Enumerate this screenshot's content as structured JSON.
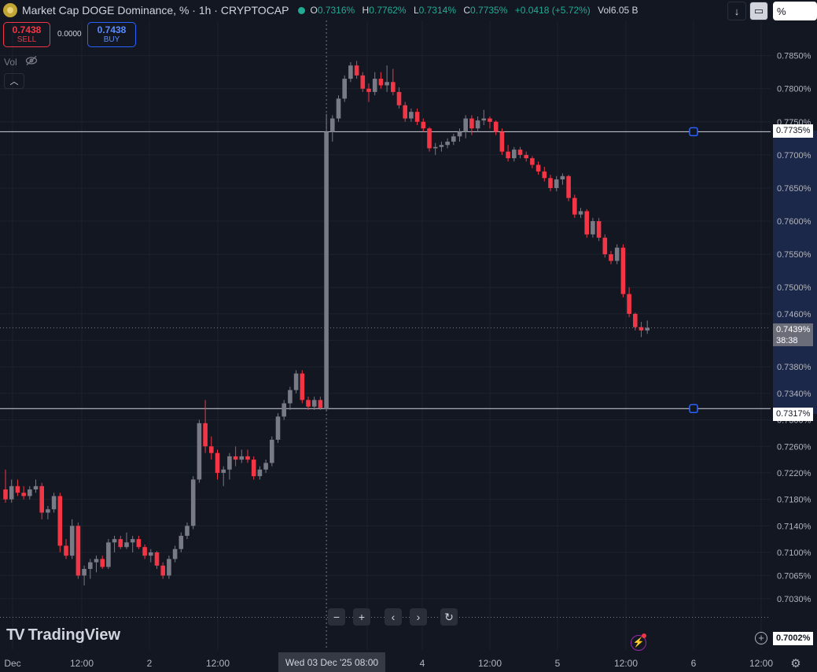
{
  "header": {
    "title": "Market Cap DOGE Dominance, % · 1h · CRYPTOCAP",
    "ohlc": [
      {
        "key": "O",
        "value": "0.7316%"
      },
      {
        "key": "H",
        "value": "0.7762%"
      },
      {
        "key": "L",
        "value": "0.7314%"
      },
      {
        "key": "C",
        "value": "0.7735%"
      }
    ],
    "change": "+0.0418 (+5.72%)",
    "vol_label": "Vol",
    "vol_value": "6.05 B",
    "percent_label": "%"
  },
  "trade": {
    "sell_price": "0.7438",
    "sell_label": "SELL",
    "spread": "0.0000",
    "buy_price": "0.7438",
    "buy_label": "BUY"
  },
  "volume_pane": {
    "label": "Vol"
  },
  "price_tags": {
    "upper_line": "0.7735%",
    "current": "0.7439%",
    "countdown": "38:38",
    "lower_line": "0.7317%",
    "bottom": "0.7002%"
  },
  "x_crosshair_label": "Wed 03 Dec '25   08:00",
  "branding": "TradingView",
  "colors": {
    "up": "#787b86",
    "down": "#f23645",
    "bg": "#131722",
    "accent": "#2962ff"
  },
  "chart_data": {
    "type": "candlestick",
    "y_unit": "%",
    "ylim": [
      0.7002,
      0.7905
    ],
    "y_ticks": [
      0.785,
      0.78,
      0.775,
      0.77,
      0.765,
      0.76,
      0.755,
      0.75,
      0.746,
      0.742,
      0.738,
      0.734,
      0.73,
      0.726,
      0.722,
      0.718,
      0.714,
      0.71,
      0.7065,
      0.703
    ],
    "y_tick_labels": [
      "0.7850%",
      "0.7800%",
      "0.7750%",
      "0.7700%",
      "0.7650%",
      "0.7600%",
      "0.7550%",
      "0.7500%",
      "0.7460%",
      "0.7420%",
      "0.7380%",
      "0.7340%",
      "0.7300%",
      "0.7260%",
      "0.7220%",
      "0.7180%",
      "0.7140%",
      "0.7100%",
      "0.7065%",
      "0.7030%"
    ],
    "x_tick_labels": [
      "Dec",
      "12:00",
      "2",
      "12:00",
      "08:00",
      "4",
      "12:00",
      "5",
      "12:00",
      "6",
      "12:00"
    ],
    "horizontal_lines": [
      0.7735,
      0.7317
    ],
    "current_price": 0.7439,
    "candles": [
      [
        0.7195,
        0.7225,
        0.7175,
        0.718
      ],
      [
        0.718,
        0.721,
        0.7175,
        0.72
      ],
      [
        0.72,
        0.721,
        0.7185,
        0.719
      ],
      [
        0.719,
        0.72,
        0.718,
        0.7185
      ],
      [
        0.7185,
        0.72,
        0.718,
        0.7195
      ],
      [
        0.7195,
        0.721,
        0.719,
        0.72
      ],
      [
        0.72,
        0.7205,
        0.715,
        0.716
      ],
      [
        0.716,
        0.717,
        0.715,
        0.7165
      ],
      [
        0.7165,
        0.719,
        0.716,
        0.7185
      ],
      [
        0.7185,
        0.719,
        0.71,
        0.711
      ],
      [
        0.711,
        0.712,
        0.709,
        0.7095
      ],
      [
        0.7095,
        0.715,
        0.709,
        0.714
      ],
      [
        0.714,
        0.7145,
        0.706,
        0.7065
      ],
      [
        0.7065,
        0.708,
        0.705,
        0.7075
      ],
      [
        0.7075,
        0.709,
        0.706,
        0.7085
      ],
      [
        0.7085,
        0.7095,
        0.707,
        0.709
      ],
      [
        0.709,
        0.7095,
        0.7075,
        0.7078
      ],
      [
        0.7078,
        0.712,
        0.7075,
        0.7115
      ],
      [
        0.7115,
        0.7125,
        0.71,
        0.712
      ],
      [
        0.712,
        0.7125,
        0.7105,
        0.7108
      ],
      [
        0.7108,
        0.713,
        0.7105,
        0.7115
      ],
      [
        0.7115,
        0.7125,
        0.71,
        0.712
      ],
      [
        0.712,
        0.7125,
        0.7105,
        0.7108
      ],
      [
        0.7108,
        0.7112,
        0.709,
        0.7095
      ],
      [
        0.7095,
        0.7105,
        0.7085,
        0.71
      ],
      [
        0.71,
        0.7102,
        0.7075,
        0.708
      ],
      [
        0.708,
        0.7085,
        0.706,
        0.7065
      ],
      [
        0.7065,
        0.7095,
        0.706,
        0.709
      ],
      [
        0.709,
        0.711,
        0.7085,
        0.7105
      ],
      [
        0.7105,
        0.713,
        0.71,
        0.7125
      ],
      [
        0.7125,
        0.7145,
        0.712,
        0.714
      ],
      [
        0.714,
        0.7215,
        0.7135,
        0.721
      ],
      [
        0.721,
        0.73,
        0.7205,
        0.7295
      ],
      [
        0.7295,
        0.733,
        0.725,
        0.726
      ],
      [
        0.726,
        0.7275,
        0.724,
        0.725
      ],
      [
        0.725,
        0.7255,
        0.721,
        0.722
      ],
      [
        0.722,
        0.723,
        0.72,
        0.7225
      ],
      [
        0.7225,
        0.725,
        0.721,
        0.7245
      ],
      [
        0.7245,
        0.726,
        0.723,
        0.724
      ],
      [
        0.724,
        0.7255,
        0.7235,
        0.7245
      ],
      [
        0.7245,
        0.7255,
        0.7235,
        0.724
      ],
      [
        0.724,
        0.7245,
        0.721,
        0.7215
      ],
      [
        0.7215,
        0.723,
        0.721,
        0.7225
      ],
      [
        0.7225,
        0.724,
        0.722,
        0.7235
      ],
      [
        0.7235,
        0.7275,
        0.723,
        0.727
      ],
      [
        0.727,
        0.731,
        0.7265,
        0.7305
      ],
      [
        0.7305,
        0.733,
        0.73,
        0.7325
      ],
      [
        0.7325,
        0.735,
        0.7315,
        0.7345
      ],
      [
        0.7345,
        0.7375,
        0.734,
        0.737
      ],
      [
        0.737,
        0.7375,
        0.7325,
        0.733
      ],
      [
        0.733,
        0.7335,
        0.7315,
        0.732
      ],
      [
        0.732,
        0.7335,
        0.7315,
        0.733
      ],
      [
        0.733,
        0.7335,
        0.7315,
        0.7318
      ],
      [
        0.7316,
        0.7762,
        0.7314,
        0.7735
      ],
      [
        0.7735,
        0.776,
        0.772,
        0.7755
      ],
      [
        0.7755,
        0.779,
        0.775,
        0.7785
      ],
      [
        0.7785,
        0.782,
        0.778,
        0.7815
      ],
      [
        0.7815,
        0.784,
        0.781,
        0.7835
      ],
      [
        0.7835,
        0.7842,
        0.7815,
        0.782
      ],
      [
        0.782,
        0.7825,
        0.7795,
        0.78
      ],
      [
        0.78,
        0.7808,
        0.778,
        0.7795
      ],
      [
        0.7795,
        0.7825,
        0.779,
        0.7815
      ],
      [
        0.7815,
        0.7825,
        0.78,
        0.7805
      ],
      [
        0.7805,
        0.7835,
        0.7795,
        0.781
      ],
      [
        0.781,
        0.783,
        0.779,
        0.7795
      ],
      [
        0.7795,
        0.7802,
        0.777,
        0.7775
      ],
      [
        0.7775,
        0.778,
        0.775,
        0.7755
      ],
      [
        0.7755,
        0.777,
        0.775,
        0.7765
      ],
      [
        0.7765,
        0.777,
        0.7745,
        0.775
      ],
      [
        0.775,
        0.7755,
        0.7735,
        0.774
      ],
      [
        0.774,
        0.7742,
        0.7705,
        0.771
      ],
      [
        0.771,
        0.7718,
        0.77,
        0.7712
      ],
      [
        0.7712,
        0.772,
        0.7705,
        0.7715
      ],
      [
        0.7715,
        0.7725,
        0.771,
        0.772
      ],
      [
        0.772,
        0.7732,
        0.7715,
        0.7728
      ],
      [
        0.7728,
        0.774,
        0.772,
        0.7735
      ],
      [
        0.7735,
        0.776,
        0.7725,
        0.7755
      ],
      [
        0.7755,
        0.776,
        0.773,
        0.774
      ],
      [
        0.774,
        0.7758,
        0.7735,
        0.7752
      ],
      [
        0.7752,
        0.7768,
        0.7745,
        0.7755
      ],
      [
        0.7755,
        0.7758,
        0.774,
        0.775
      ],
      [
        0.775,
        0.7752,
        0.773,
        0.7735
      ],
      [
        0.7735,
        0.774,
        0.77,
        0.7705
      ],
      [
        0.7705,
        0.7715,
        0.769,
        0.7695
      ],
      [
        0.7695,
        0.7712,
        0.769,
        0.7708
      ],
      [
        0.7708,
        0.7712,
        0.7695,
        0.77
      ],
      [
        0.77,
        0.7705,
        0.769,
        0.7695
      ],
      [
        0.7695,
        0.7698,
        0.768,
        0.7685
      ],
      [
        0.7685,
        0.769,
        0.767,
        0.7675
      ],
      [
        0.7675,
        0.7682,
        0.766,
        0.7665
      ],
      [
        0.7665,
        0.767,
        0.7645,
        0.765
      ],
      [
        0.765,
        0.7668,
        0.7645,
        0.7663
      ],
      [
        0.7663,
        0.7672,
        0.7655,
        0.7668
      ],
      [
        0.7668,
        0.767,
        0.763,
        0.7635
      ],
      [
        0.7635,
        0.764,
        0.7605,
        0.761
      ],
      [
        0.761,
        0.762,
        0.7605,
        0.7615
      ],
      [
        0.7615,
        0.7618,
        0.7575,
        0.758
      ],
      [
        0.758,
        0.7605,
        0.7575,
        0.76
      ],
      [
        0.76,
        0.7605,
        0.757,
        0.7575
      ],
      [
        0.7575,
        0.758,
        0.7545,
        0.755
      ],
      [
        0.755,
        0.7555,
        0.7535,
        0.754
      ],
      [
        0.754,
        0.7565,
        0.7535,
        0.756
      ],
      [
        0.756,
        0.7565,
        0.7485,
        0.749
      ],
      [
        0.749,
        0.75,
        0.7455,
        0.746
      ],
      [
        0.746,
        0.7462,
        0.7435,
        0.744
      ],
      [
        0.744,
        0.7448,
        0.7425,
        0.7435
      ],
      [
        0.7435,
        0.745,
        0.743,
        0.7439
      ]
    ]
  }
}
